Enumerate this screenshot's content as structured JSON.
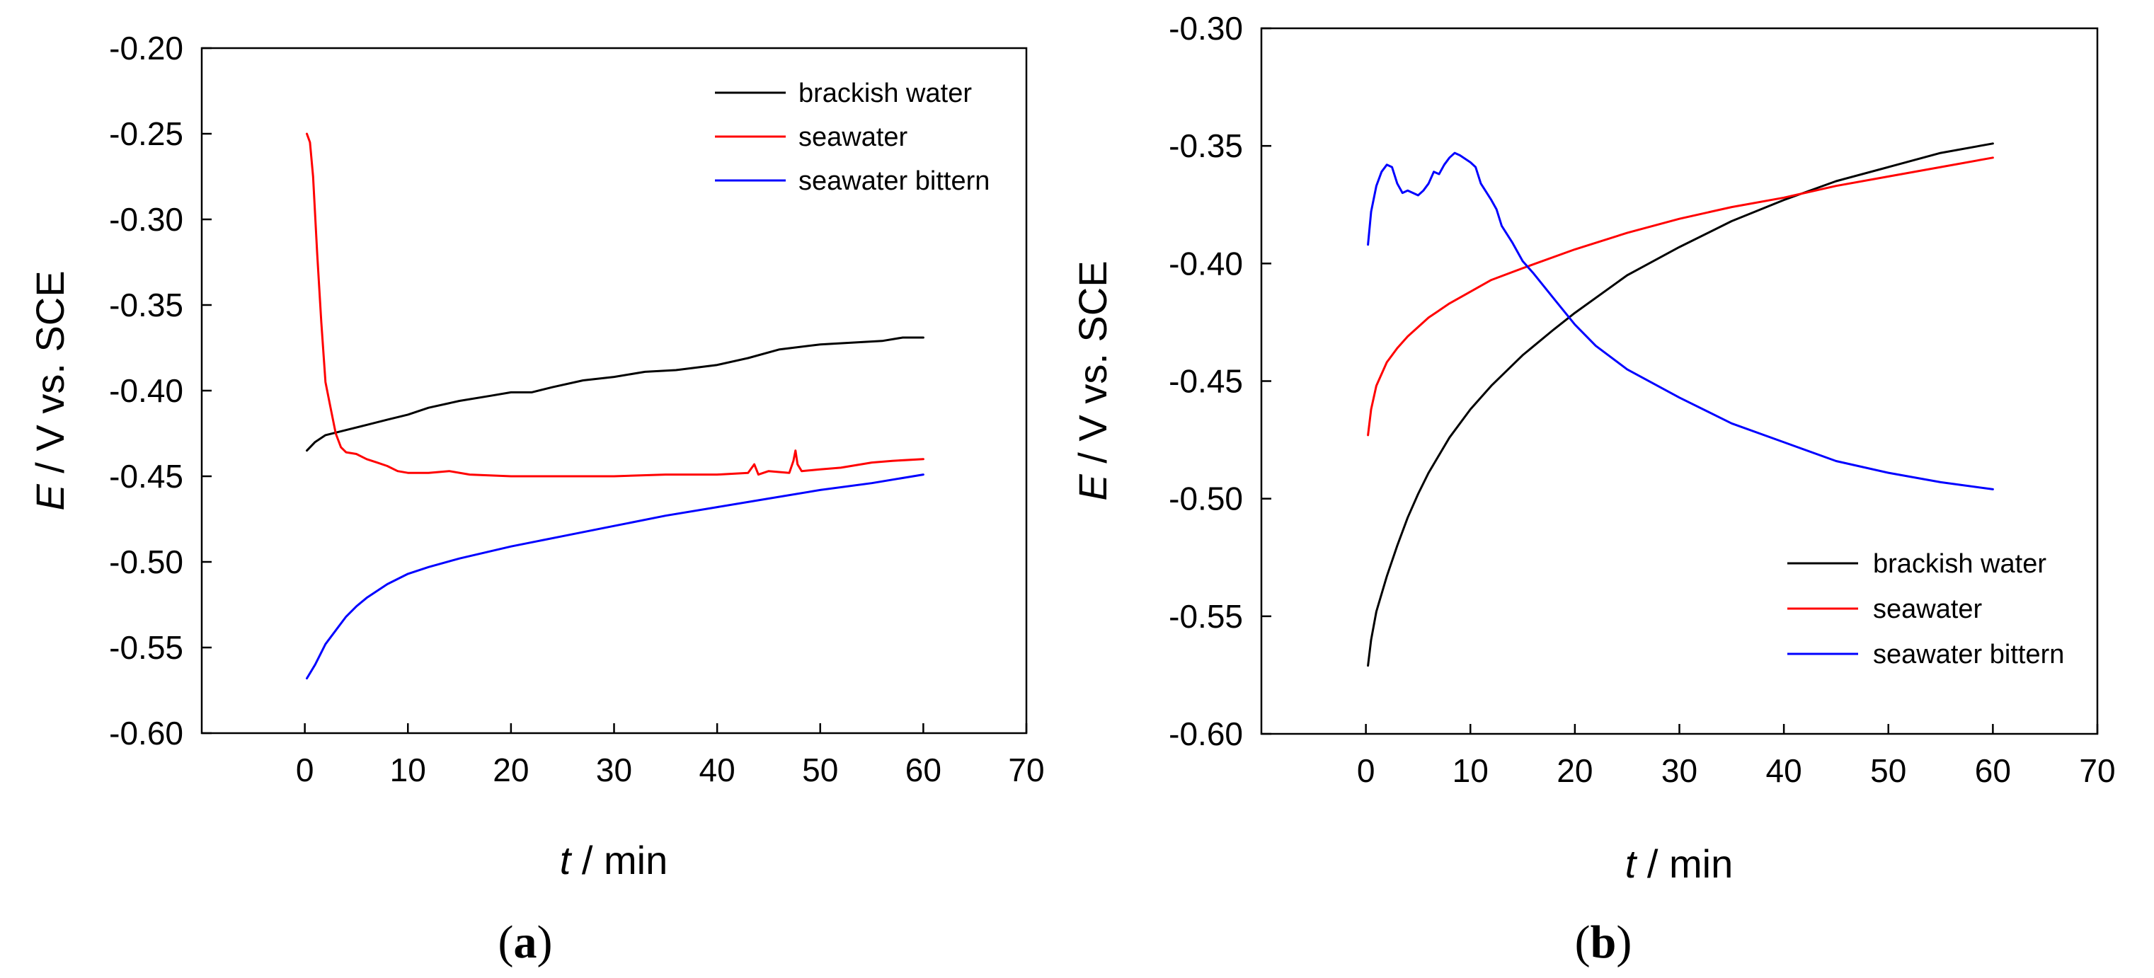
{
  "chart_data": [
    {
      "type": "line",
      "panel_label": "a",
      "xlabel_var": "t",
      "xlabel_unit": " / min",
      "ylabel_var": "E",
      "ylabel_unit": " / V vs. SCE",
      "xlim": [
        -10,
        70
      ],
      "ylim": [
        -0.6,
        -0.2
      ],
      "xticks": [
        "0",
        "10",
        "20",
        "30",
        "40",
        "50",
        "60",
        "70"
      ],
      "xtick_values": [
        0,
        10,
        20,
        30,
        40,
        50,
        60,
        70
      ],
      "yticks": [
        "-0.20",
        "-0.25",
        "-0.30",
        "-0.35",
        "-0.40",
        "-0.45",
        "-0.50",
        "-0.55",
        "-0.60"
      ],
      "ytick_values": [
        -0.2,
        -0.25,
        -0.3,
        -0.35,
        -0.4,
        -0.45,
        -0.5,
        -0.55,
        -0.6
      ],
      "legend": "top-right",
      "grid": false,
      "series": [
        {
          "name": "brackish water",
          "color": "#000000",
          "points": [
            [
              0.2,
              -0.435
            ],
            [
              1,
              -0.43
            ],
            [
              2,
              -0.426
            ],
            [
              4,
              -0.423
            ],
            [
              6,
              -0.42
            ],
            [
              8,
              -0.417
            ],
            [
              10,
              -0.414
            ],
            [
              12,
              -0.41
            ],
            [
              15,
              -0.406
            ],
            [
              18,
              -0.403
            ],
            [
              20,
              -0.401
            ],
            [
              22,
              -0.401
            ],
            [
              24,
              -0.398
            ],
            [
              27,
              -0.394
            ],
            [
              30,
              -0.392
            ],
            [
              33,
              -0.389
            ],
            [
              36,
              -0.388
            ],
            [
              40,
              -0.385
            ],
            [
              43,
              -0.381
            ],
            [
              46,
              -0.376
            ],
            [
              50,
              -0.373
            ],
            [
              53,
              -0.372
            ],
            [
              56,
              -0.371
            ],
            [
              58,
              -0.369
            ],
            [
              60,
              -0.369
            ]
          ]
        },
        {
          "name": "seawater",
          "color": "#ff0000",
          "points": [
            [
              0.2,
              -0.25
            ],
            [
              0.5,
              -0.255
            ],
            [
              0.8,
              -0.275
            ],
            [
              1.2,
              -0.32
            ],
            [
              1.6,
              -0.36
            ],
            [
              2,
              -0.395
            ],
            [
              2.5,
              -0.41
            ],
            [
              3,
              -0.425
            ],
            [
              3.5,
              -0.433
            ],
            [
              4,
              -0.436
            ],
            [
              5,
              -0.437
            ],
            [
              6,
              -0.44
            ],
            [
              7,
              -0.442
            ],
            [
              8,
              -0.444
            ],
            [
              9,
              -0.447
            ],
            [
              10,
              -0.448
            ],
            [
              12,
              -0.448
            ],
            [
              14,
              -0.447
            ],
            [
              16,
              -0.449
            ],
            [
              20,
              -0.45
            ],
            [
              25,
              -0.45
            ],
            [
              30,
              -0.45
            ],
            [
              35,
              -0.449
            ],
            [
              40,
              -0.449
            ],
            [
              43,
              -0.448
            ],
            [
              43.6,
              -0.443
            ],
            [
              44,
              -0.449
            ],
            [
              45,
              -0.447
            ],
            [
              47,
              -0.448
            ],
            [
              47.4,
              -0.441
            ],
            [
              47.6,
              -0.435
            ],
            [
              47.8,
              -0.443
            ],
            [
              48.2,
              -0.447
            ],
            [
              50,
              -0.446
            ],
            [
              52,
              -0.445
            ],
            [
              55,
              -0.442
            ],
            [
              57,
              -0.441
            ],
            [
              60,
              -0.44
            ]
          ]
        },
        {
          "name": "seawater bittern",
          "color": "#0000ff",
          "points": [
            [
              0.2,
              -0.568
            ],
            [
              1,
              -0.56
            ],
            [
              2,
              -0.548
            ],
            [
              3,
              -0.54
            ],
            [
              4,
              -0.532
            ],
            [
              5,
              -0.526
            ],
            [
              6,
              -0.521
            ],
            [
              8,
              -0.513
            ],
            [
              10,
              -0.507
            ],
            [
              12,
              -0.503
            ],
            [
              15,
              -0.498
            ],
            [
              20,
              -0.491
            ],
            [
              25,
              -0.485
            ],
            [
              30,
              -0.479
            ],
            [
              35,
              -0.473
            ],
            [
              40,
              -0.468
            ],
            [
              45,
              -0.463
            ],
            [
              50,
              -0.458
            ],
            [
              55,
              -0.454
            ],
            [
              60,
              -0.449
            ]
          ]
        }
      ]
    },
    {
      "type": "line",
      "panel_label": "b",
      "xlabel_var": "t",
      "xlabel_unit": " / min",
      "ylabel_var": "E",
      "ylabel_unit": " / V vs. SCE",
      "xlim": [
        -10,
        70
      ],
      "ylim": [
        -0.6,
        -0.3
      ],
      "xticks": [
        "0",
        "10",
        "20",
        "30",
        "40",
        "50",
        "60",
        "70"
      ],
      "xtick_values": [
        0,
        10,
        20,
        30,
        40,
        50,
        60,
        70
      ],
      "yticks": [
        "-0.30",
        "-0.35",
        "-0.40",
        "-0.45",
        "-0.50",
        "-0.55",
        "-0.60"
      ],
      "ytick_values": [
        -0.3,
        -0.35,
        -0.4,
        -0.45,
        -0.5,
        -0.55,
        -0.6
      ],
      "legend": "bottom-right",
      "grid": false,
      "series": [
        {
          "name": "brackish water",
          "color": "#000000",
          "points": [
            [
              0.2,
              -0.571
            ],
            [
              0.5,
              -0.56
            ],
            [
              1,
              -0.548
            ],
            [
              2,
              -0.533
            ],
            [
              3,
              -0.52
            ],
            [
              4,
              -0.508
            ],
            [
              5,
              -0.498
            ],
            [
              6,
              -0.489
            ],
            [
              8,
              -0.474
            ],
            [
              10,
              -0.462
            ],
            [
              12,
              -0.452
            ],
            [
              15,
              -0.439
            ],
            [
              18,
              -0.428
            ],
            [
              20,
              -0.421
            ],
            [
              25,
              -0.405
            ],
            [
              30,
              -0.393
            ],
            [
              35,
              -0.382
            ],
            [
              40,
              -0.373
            ],
            [
              45,
              -0.365
            ],
            [
              50,
              -0.359
            ],
            [
              55,
              -0.353
            ],
            [
              60,
              -0.349
            ]
          ]
        },
        {
          "name": "seawater",
          "color": "#ff0000",
          "points": [
            [
              0.2,
              -0.473
            ],
            [
              0.5,
              -0.462
            ],
            [
              1,
              -0.452
            ],
            [
              2,
              -0.442
            ],
            [
              3,
              -0.436
            ],
            [
              4,
              -0.431
            ],
            [
              5,
              -0.427
            ],
            [
              6,
              -0.423
            ],
            [
              8,
              -0.417
            ],
            [
              10,
              -0.412
            ],
            [
              12,
              -0.407
            ],
            [
              15,
              -0.402
            ],
            [
              20,
              -0.394
            ],
            [
              25,
              -0.387
            ],
            [
              30,
              -0.381
            ],
            [
              35,
              -0.376
            ],
            [
              40,
              -0.372
            ],
            [
              45,
              -0.367
            ],
            [
              50,
              -0.363
            ],
            [
              55,
              -0.359
            ],
            [
              60,
              -0.355
            ]
          ]
        },
        {
          "name": "seawater bittern",
          "color": "#0000ff",
          "points": [
            [
              0.2,
              -0.392
            ],
            [
              0.5,
              -0.378
            ],
            [
              1,
              -0.367
            ],
            [
              1.5,
              -0.361
            ],
            [
              2,
              -0.358
            ],
            [
              2.5,
              -0.359
            ],
            [
              3,
              -0.366
            ],
            [
              3.5,
              -0.37
            ],
            [
              4,
              -0.369
            ],
            [
              5,
              -0.371
            ],
            [
              5.5,
              -0.369
            ],
            [
              6,
              -0.366
            ],
            [
              6.5,
              -0.361
            ],
            [
              7,
              -0.362
            ],
            [
              7.5,
              -0.358
            ],
            [
              8,
              -0.355
            ],
            [
              8.5,
              -0.353
            ],
            [
              9,
              -0.354
            ],
            [
              10,
              -0.357
            ],
            [
              10.5,
              -0.359
            ],
            [
              11,
              -0.366
            ],
            [
              12,
              -0.373
            ],
            [
              12.5,
              -0.377
            ],
            [
              13,
              -0.384
            ],
            [
              14,
              -0.391
            ],
            [
              15,
              -0.399
            ],
            [
              16,
              -0.404
            ],
            [
              18,
              -0.415
            ],
            [
              20,
              -0.426
            ],
            [
              22,
              -0.435
            ],
            [
              25,
              -0.445
            ],
            [
              30,
              -0.457
            ],
            [
              35,
              -0.468
            ],
            [
              40,
              -0.476
            ],
            [
              45,
              -0.484
            ],
            [
              50,
              -0.489
            ],
            [
              55,
              -0.493
            ],
            [
              60,
              -0.496
            ]
          ]
        }
      ]
    }
  ]
}
